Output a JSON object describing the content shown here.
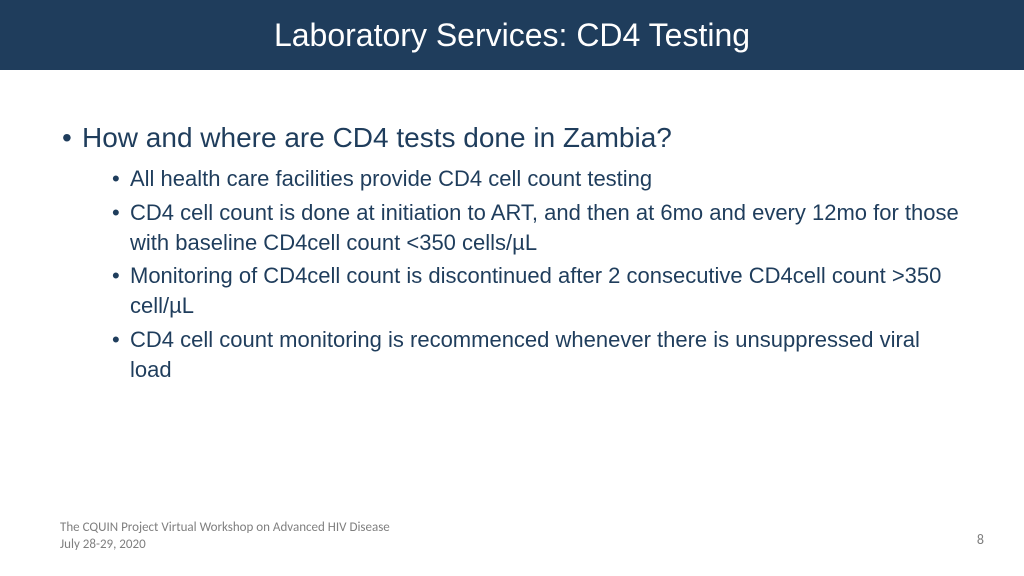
{
  "colors": {
    "title_bar_bg": "#1f3d5c",
    "title_text": "#ffffff",
    "body_text": "#1f3d5c",
    "footer_text": "#7f7f7f",
    "background": "#ffffff"
  },
  "typography": {
    "title_fontsize": 32,
    "main_bullet_fontsize": 28,
    "sub_bullet_fontsize": 22,
    "footer_fontsize": 13
  },
  "title": "Laboratory Services: CD4 Testing",
  "main_question": "How and where are CD4 tests done in Zambia?",
  "sub_points": [
    "All health care  facilities provide CD4 cell count testing",
    " CD4 cell count is done at initiation to ART, and then at 6mo and every 12mo for those with baseline CD4cell count <350 cells/µL",
    "Monitoring of CD4cell count is discontinued after 2 consecutive CD4cell count >350 cell/µL",
    "CD4 cell count monitoring is recommenced whenever there is unsuppressed viral load"
  ],
  "footer_line1": "The CQUIN Project Virtual Workshop on Advanced HIV Disease",
  "footer_line2": "July 28-29, 2020",
  "page_number": "8"
}
